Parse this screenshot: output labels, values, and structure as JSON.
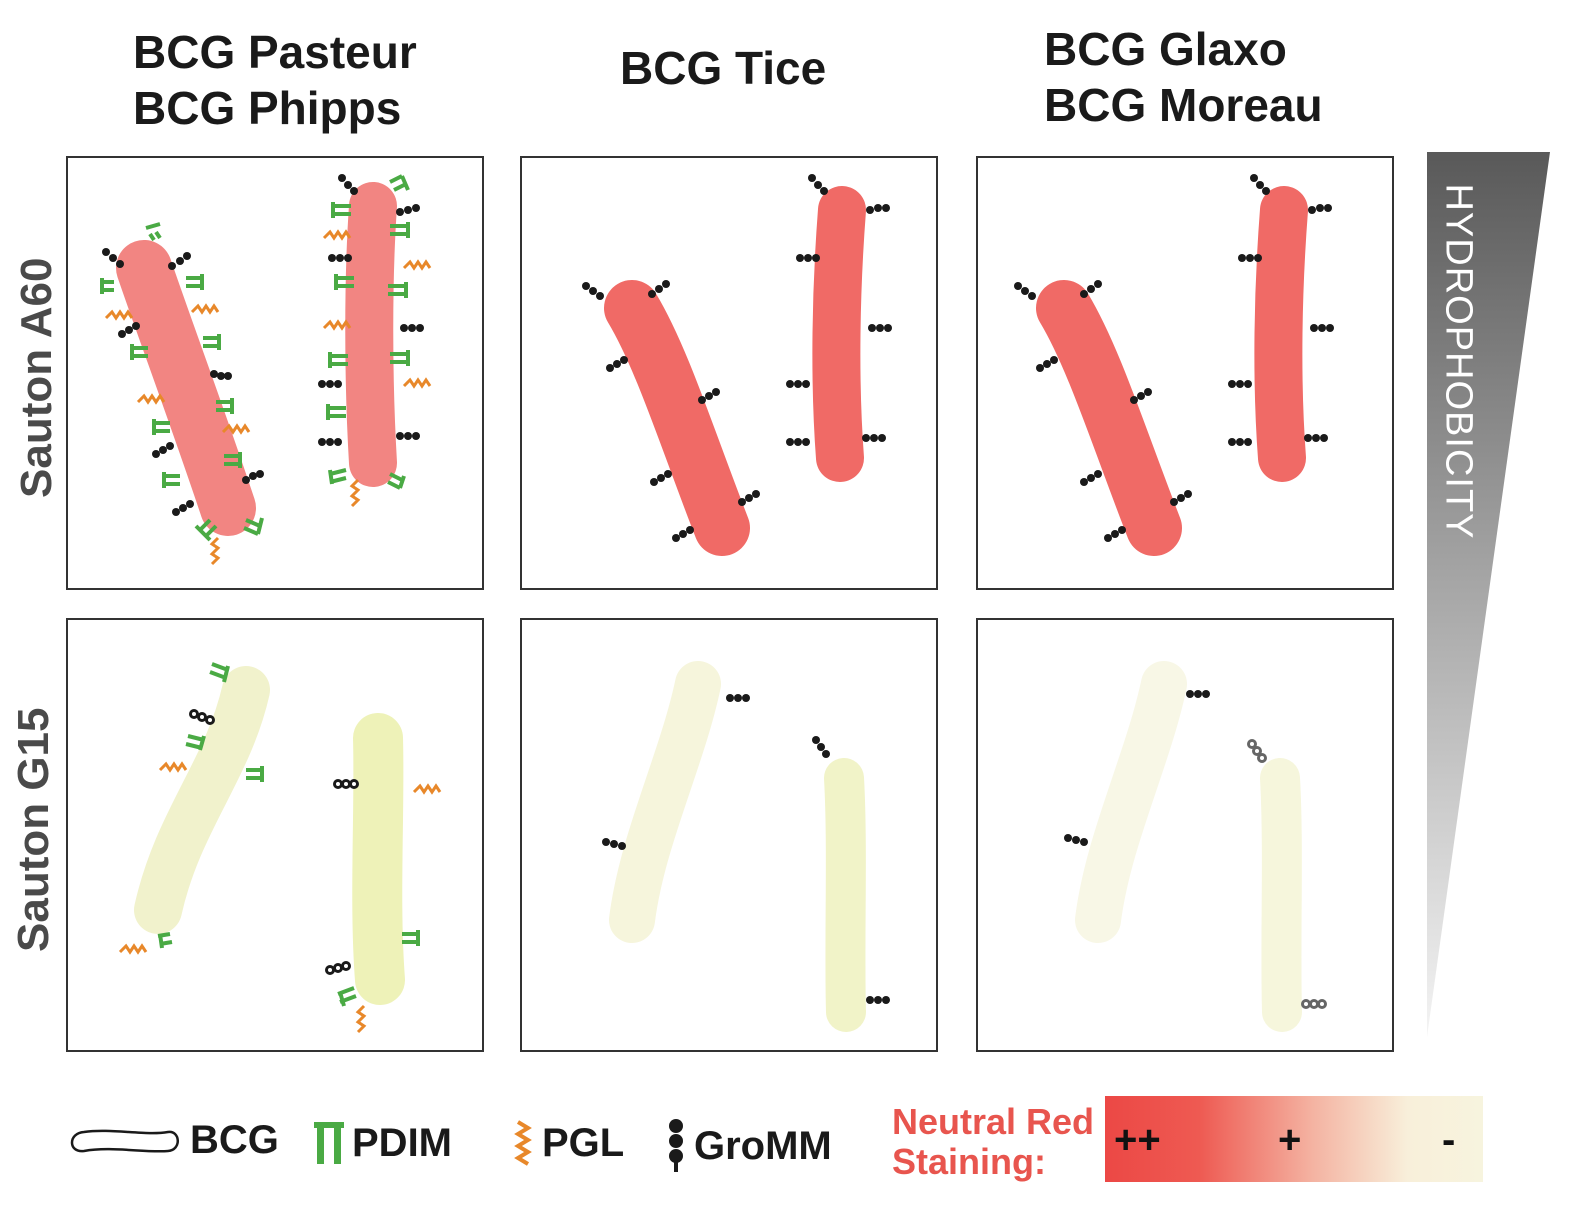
{
  "columns": {
    "col1_line1": "BCG Pasteur",
    "col1_line2": "BCG Phipps",
    "col2": "BCG Tice",
    "col3_line1": "BCG Glaxo",
    "col3_line2": "BCG Moreau"
  },
  "rows": {
    "top": "Sauton A60",
    "bottom": "Sauton G15"
  },
  "gradient": {
    "label": "HYDROPHOBICITY"
  },
  "legend": {
    "bcg": "BCG",
    "pdim": "PDIM",
    "pgl": "PGL",
    "gromm": "GroMM"
  },
  "staining": {
    "label_line1": "Neutral Red",
    "label_line2": "Staining:",
    "high": "++",
    "mid": "+",
    "low": "-"
  },
  "colors": {
    "red_stain": "#f06a66",
    "pink_stain": "#f28582",
    "pale_yellow": "#f3f3c8",
    "pale_cream": "#f7f5df",
    "pdim_green": "#4aaa44",
    "pgl_orange": "#e8882a",
    "gromm_black": "#1a1a1a"
  },
  "icons": [
    "bcg-rod-icon",
    "pdim-icon",
    "pgl-icon",
    "gromm-icon"
  ]
}
